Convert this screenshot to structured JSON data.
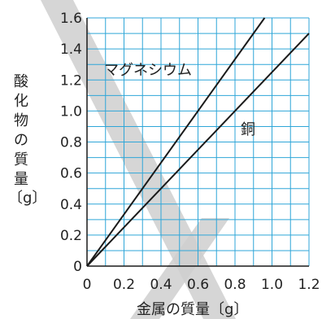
{
  "chart_data": {
    "type": "line",
    "xlabel": "金属の質量〔g〕",
    "ylabel_chars": [
      "酸",
      "化",
      "物",
      "の",
      "質",
      "量"
    ],
    "ylabel_unit": "〔g〕",
    "xlim": [
      0,
      1.2
    ],
    "ylim": [
      0,
      1.6
    ],
    "x_ticks": [
      "0",
      "0.2",
      "0.4",
      "0.6",
      "0.8",
      "1.0",
      "1.2"
    ],
    "y_ticks": [
      "0",
      "0.2",
      "0.4",
      "0.6",
      "0.8",
      "1.0",
      "1.2",
      "1.4",
      "1.6"
    ],
    "grid": true,
    "series": [
      {
        "name": "マグネシウム",
        "x": [
          0,
          0.96
        ],
        "y": [
          0,
          1.6
        ]
      },
      {
        "name": "銅",
        "x": [
          0,
          1.2
        ],
        "y": [
          0,
          1.5
        ]
      }
    ],
    "colors": {
      "grid": "#2fa6d8",
      "line": "#1a1a1a",
      "text": "#222222",
      "watermark": "#c8c8c8"
    }
  }
}
